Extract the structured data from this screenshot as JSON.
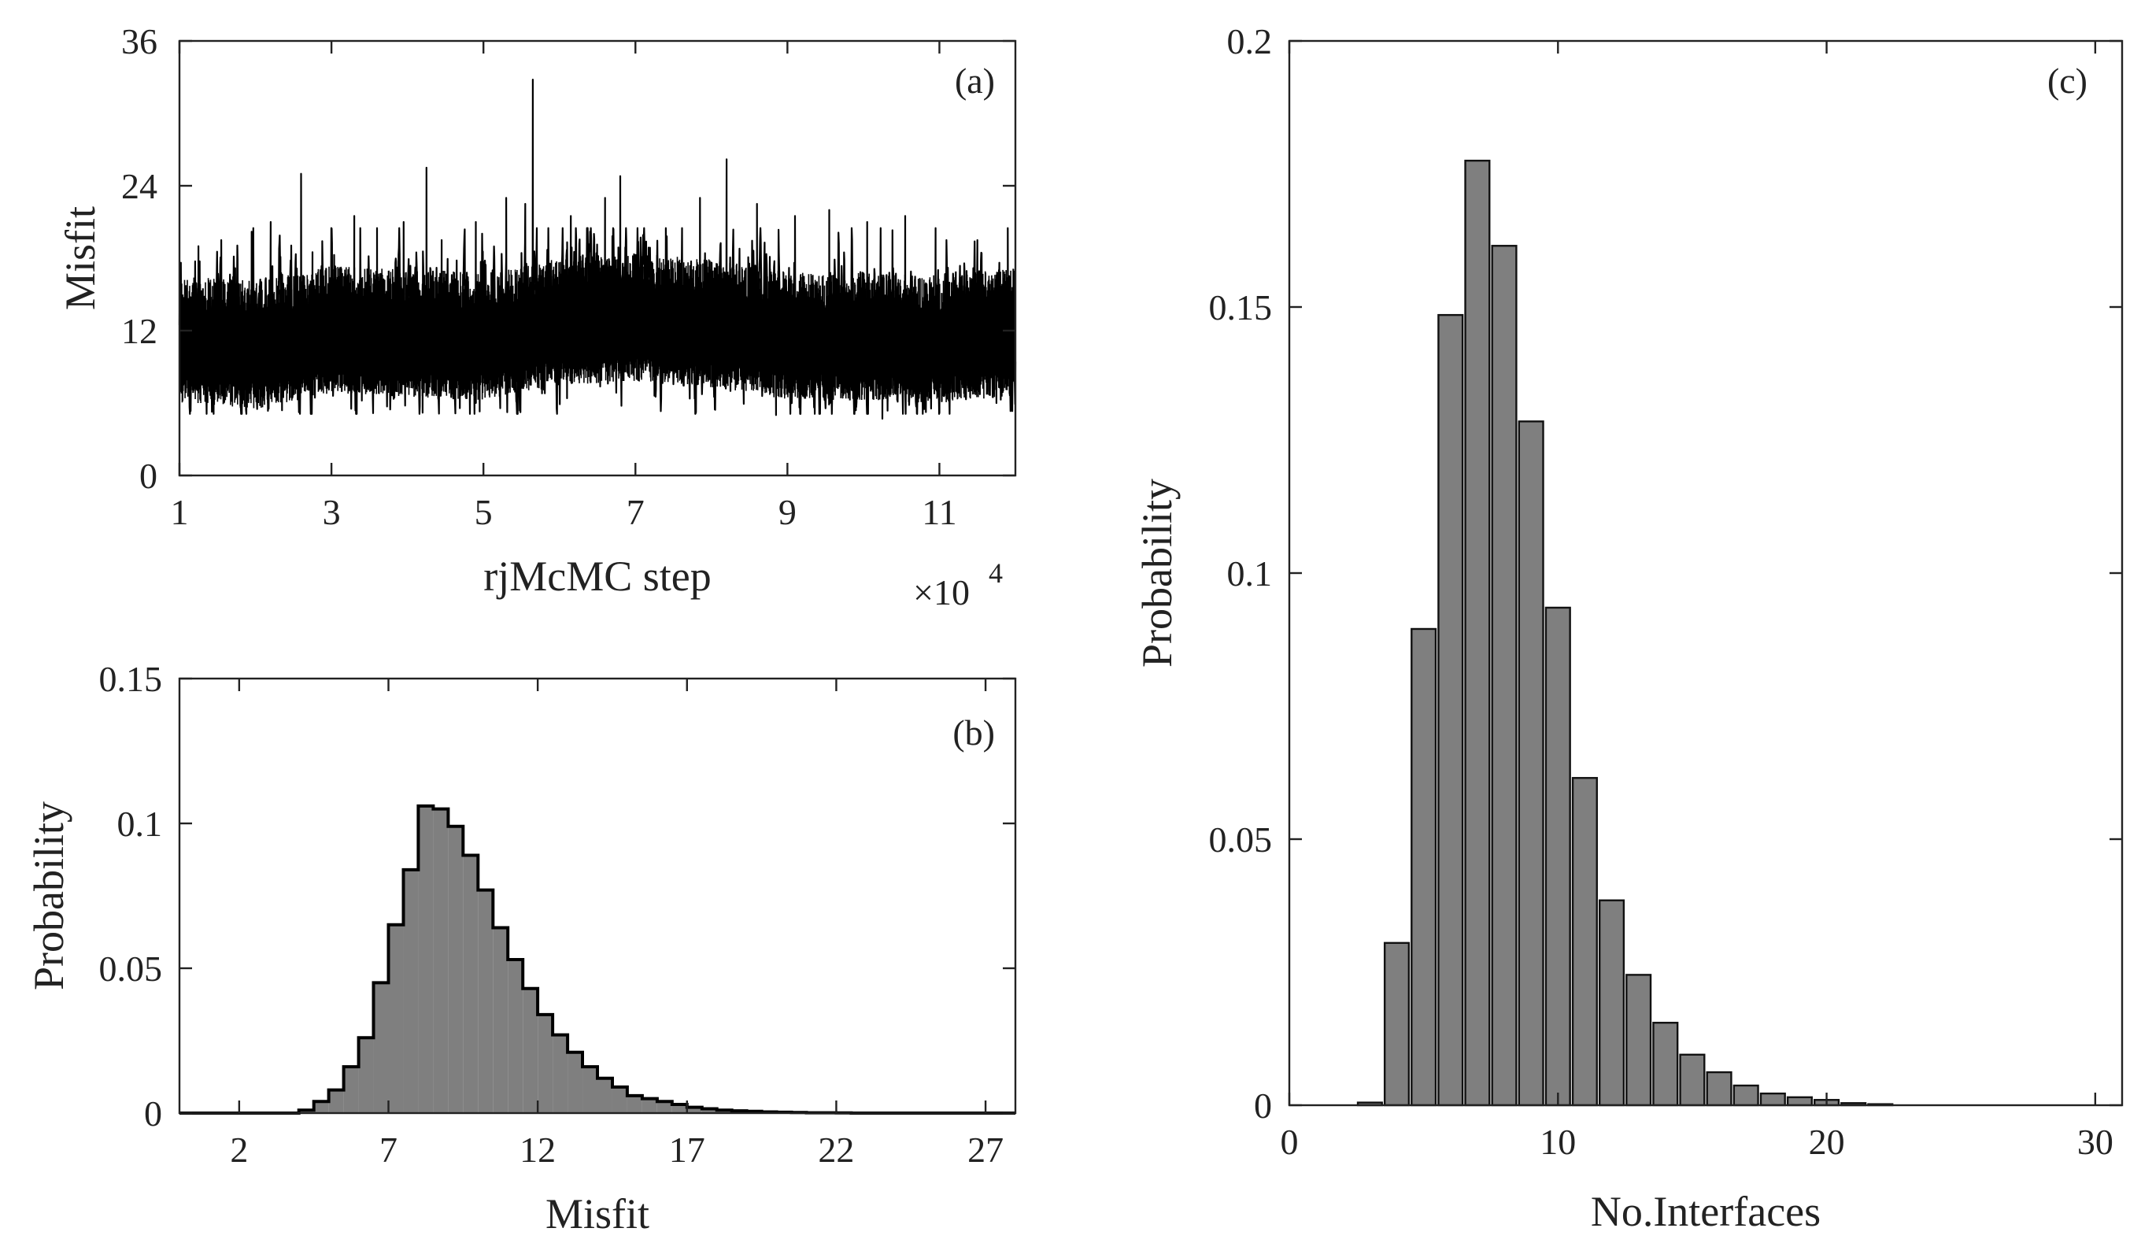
{
  "chart_data": [
    {
      "panel": "(a)",
      "type": "line",
      "xlabel": "rjMcMC step",
      "ylabel": "Misfit",
      "x_scale_label": "×10",
      "x_scale_exponent": "4",
      "xlim": [
        1,
        12
      ],
      "ylim": [
        0,
        36
      ],
      "xticks": [
        "1",
        "3",
        "5",
        "7",
        "9",
        "11"
      ],
      "yticks": [
        "0",
        "12",
        "24",
        "36"
      ],
      "series_color": "#000000",
      "baseline": [
        {
          "x": 1.0,
          "y": 11.0
        },
        {
          "x": 2.0,
          "y": 10.5
        },
        {
          "x": 3.0,
          "y": 11.8
        },
        {
          "x": 4.0,
          "y": 11.5
        },
        {
          "x": 5.0,
          "y": 11.2
        },
        {
          "x": 6.0,
          "y": 12.4
        },
        {
          "x": 7.0,
          "y": 12.8
        },
        {
          "x": 8.0,
          "y": 12.3
        },
        {
          "x": 9.0,
          "y": 11.3
        },
        {
          "x": 10.0,
          "y": 11.2
        },
        {
          "x": 11.0,
          "y": 11.0
        },
        {
          "x": 12.0,
          "y": 11.6
        }
      ],
      "trace_minimum": 4.7,
      "trace_maximum": 32.8,
      "spikes": [
        {
          "x": 1.25,
          "y": 19.0
        },
        {
          "x": 1.55,
          "y": 19.5
        },
        {
          "x": 1.95,
          "y": 20.2
        },
        {
          "x": 2.2,
          "y": 21.0
        },
        {
          "x": 2.6,
          "y": 25.0
        },
        {
          "x": 2.75,
          "y": 18.5
        },
        {
          "x": 3.3,
          "y": 21.5
        },
        {
          "x": 3.6,
          "y": 20.5
        },
        {
          "x": 3.95,
          "y": 21.0
        },
        {
          "x": 4.25,
          "y": 25.5
        },
        {
          "x": 4.45,
          "y": 19.5
        },
        {
          "x": 4.9,
          "y": 21.0
        },
        {
          "x": 5.3,
          "y": 23.0
        },
        {
          "x": 5.55,
          "y": 22.5
        },
        {
          "x": 5.65,
          "y": 32.8
        },
        {
          "x": 6.15,
          "y": 21.5
        },
        {
          "x": 6.6,
          "y": 23.0
        },
        {
          "x": 6.8,
          "y": 24.8
        },
        {
          "x": 7.4,
          "y": 20.5
        },
        {
          "x": 7.85,
          "y": 23.0
        },
        {
          "x": 8.2,
          "y": 26.2
        },
        {
          "x": 8.6,
          "y": 22.5
        },
        {
          "x": 9.1,
          "y": 21.5
        },
        {
          "x": 9.55,
          "y": 22.0
        },
        {
          "x": 10.05,
          "y": 21.0
        },
        {
          "x": 10.55,
          "y": 21.5
        },
        {
          "x": 10.95,
          "y": 20.5
        },
        {
          "x": 11.5,
          "y": 19.5
        },
        {
          "x": 11.9,
          "y": 20.5
        }
      ],
      "dips": [
        {
          "x": 1.45,
          "y": 5.1
        },
        {
          "x": 2.35,
          "y": 5.4
        },
        {
          "x": 3.4,
          "y": 6.2
        },
        {
          "x": 4.2,
          "y": 5.2
        },
        {
          "x": 4.95,
          "y": 5.3
        },
        {
          "x": 6.1,
          "y": 6.4
        },
        {
          "x": 7.25,
          "y": 6.6
        },
        {
          "x": 8.25,
          "y": 7.0
        },
        {
          "x": 8.85,
          "y": 5.0
        },
        {
          "x": 9.9,
          "y": 5.4
        },
        {
          "x": 10.25,
          "y": 4.7
        },
        {
          "x": 11.0,
          "y": 5.2
        },
        {
          "x": 11.75,
          "y": 6.0
        }
      ]
    },
    {
      "panel": "(b)",
      "type": "bar",
      "style": "stairs-filled",
      "xlabel": "Misfit",
      "ylabel": "Probability",
      "xlim": [
        0,
        28
      ],
      "ylim": [
        0,
        0.15
      ],
      "xticks": [
        "2",
        "7",
        "12",
        "17",
        "22",
        "27"
      ],
      "yticks": [
        "0",
        "0.05",
        "0.1",
        "0.15"
      ],
      "fill_color": "#7f7f7f",
      "bin_edges": [
        4.0,
        4.5,
        5.0,
        5.5,
        6.0,
        6.5,
        7.0,
        7.5,
        8.0,
        8.5,
        9.0,
        9.5,
        10.0,
        10.5,
        11.0,
        11.5,
        12.0,
        12.5,
        13.0,
        13.5,
        14.0,
        14.5,
        15.0,
        15.5,
        16.0,
        16.5,
        17.0,
        17.5,
        18.0,
        18.5,
        19.0,
        19.5,
        20.0,
        20.5,
        21.0,
        21.5,
        22.0,
        22.5
      ],
      "values": [
        0.001,
        0.004,
        0.008,
        0.016,
        0.026,
        0.045,
        0.065,
        0.084,
        0.106,
        0.105,
        0.099,
        0.089,
        0.077,
        0.064,
        0.053,
        0.043,
        0.034,
        0.027,
        0.021,
        0.016,
        0.012,
        0.009,
        0.006,
        0.005,
        0.004,
        0.003,
        0.002,
        0.0015,
        0.001,
        0.0008,
        0.0006,
        0.0004,
        0.0003,
        0.0002,
        0.0001,
        0.0001,
        5e-05
      ]
    },
    {
      "panel": "(c)",
      "type": "bar",
      "xlabel": "No.Interfaces",
      "ylabel": "Probability",
      "xlim": [
        0,
        31
      ],
      "ylim": [
        0,
        0.2
      ],
      "xticks": [
        "0",
        "10",
        "20",
        "30"
      ],
      "yticks": [
        "0",
        "0.05",
        "0.1",
        "0.15",
        "0.2"
      ],
      "fill_color": "#7f7f7f",
      "categories": [
        3,
        4,
        5,
        6,
        7,
        8,
        9,
        10,
        11,
        12,
        13,
        14,
        15,
        16,
        17,
        18,
        19,
        20,
        21,
        22
      ],
      "values": [
        0.0005,
        0.0305,
        0.0895,
        0.1485,
        0.1775,
        0.1615,
        0.1285,
        0.0935,
        0.0615,
        0.0385,
        0.0245,
        0.0155,
        0.0095,
        0.0062,
        0.0037,
        0.0022,
        0.0015,
        0.001,
        0.0004,
        0.0002
      ]
    }
  ]
}
